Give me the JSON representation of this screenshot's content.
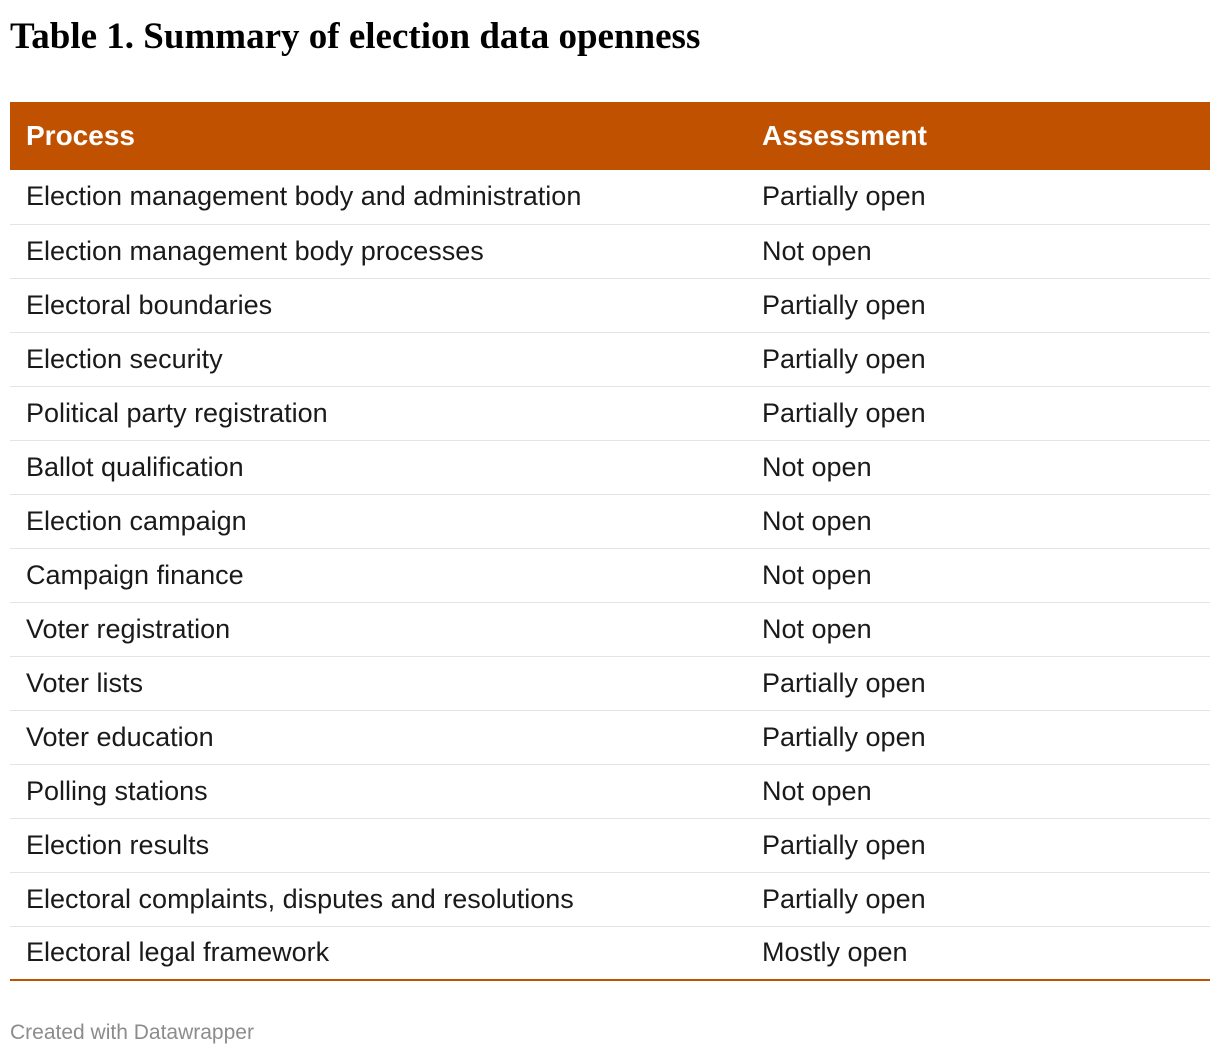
{
  "title": "Table 1. Summary of election data openness",
  "colors": {
    "header_background": "#c05100",
    "header_text": "#ffffff",
    "row_divider": "#e4e4e4",
    "footer_text": "#8c8c8c"
  },
  "chart_data": {
    "type": "table",
    "title": "Table 1. Summary of election data openness",
    "columns": [
      "Process",
      "Assessment"
    ],
    "rows": [
      [
        "Election management body and administration",
        "Partially open"
      ],
      [
        "Election management body processes",
        "Not open"
      ],
      [
        "Electoral boundaries",
        "Partially open"
      ],
      [
        "Election security",
        "Partially open"
      ],
      [
        "Political party registration",
        "Partially open"
      ],
      [
        "Ballot qualification",
        "Not open"
      ],
      [
        "Election campaign",
        "Not open"
      ],
      [
        "Campaign finance",
        "Not open"
      ],
      [
        "Voter registration",
        "Not open"
      ],
      [
        "Voter lists",
        "Partially open"
      ],
      [
        "Voter education",
        "Partially open"
      ],
      [
        "Polling stations",
        "Not open"
      ],
      [
        "Election results",
        "Partially open"
      ],
      [
        "Electoral complaints, disputes and resolutions",
        "Partially open"
      ],
      [
        "Electoral legal framework",
        "Mostly open"
      ]
    ]
  },
  "footer": {
    "credit": "Created with Datawrapper"
  }
}
